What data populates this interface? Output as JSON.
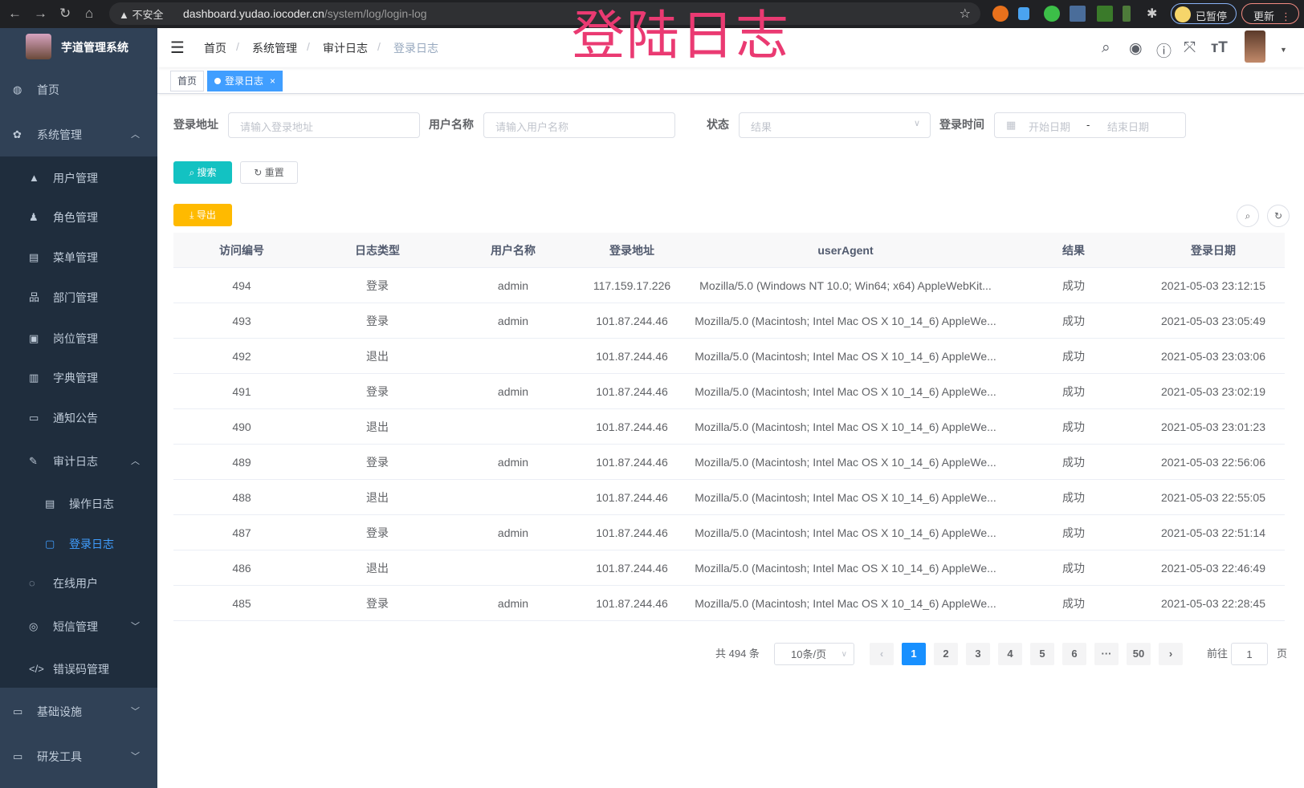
{
  "browser": {
    "security": "不安全",
    "url_host": "dashboard.yudao.iocoder.cn",
    "url_path": "/system/log/login-log",
    "paused": "已暂停",
    "update": "更新"
  },
  "app": {
    "title": "芋道管理系统"
  },
  "overlay_title": "登陆日志",
  "sidebar": {
    "items": [
      {
        "label": "首页",
        "icon": "dashboard-icon",
        "level": 0
      },
      {
        "label": "系统管理",
        "icon": "gear-icon",
        "level": 0,
        "expanded": true
      },
      {
        "label": "用户管理",
        "icon": "user-icon",
        "level": 1
      },
      {
        "label": "角色管理",
        "icon": "role-icon",
        "level": 1
      },
      {
        "label": "菜单管理",
        "icon": "menu-icon",
        "level": 1
      },
      {
        "label": "部门管理",
        "icon": "tree-icon",
        "level": 1
      },
      {
        "label": "岗位管理",
        "icon": "post-icon",
        "level": 1
      },
      {
        "label": "字典管理",
        "icon": "dict-icon",
        "level": 1
      },
      {
        "label": "通知公告",
        "icon": "message-icon",
        "level": 1
      },
      {
        "label": "审计日志",
        "icon": "edit-icon",
        "level": 1,
        "expanded": true
      },
      {
        "label": "操作日志",
        "icon": "form-icon",
        "level": 2
      },
      {
        "label": "登录日志",
        "icon": "logininfor-icon",
        "level": 2,
        "active": true
      },
      {
        "label": "在线用户",
        "icon": "online-icon",
        "level": 1
      },
      {
        "label": "短信管理",
        "icon": "shield-icon",
        "level": 1,
        "expanded": false
      },
      {
        "label": "错误码管理",
        "icon": "code-icon",
        "level": 1
      },
      {
        "label": "基础设施",
        "icon": "monitor-icon",
        "level": 0,
        "expanded": false
      },
      {
        "label": "研发工具",
        "icon": "tool-icon",
        "level": 0,
        "expanded": false
      }
    ]
  },
  "breadcrumb": [
    "首页",
    "系统管理",
    "审计日志",
    "登录日志"
  ],
  "tags": [
    {
      "label": "首页"
    },
    {
      "label": "登录日志",
      "active": true
    }
  ],
  "filters": {
    "address": {
      "label": "登录地址",
      "placeholder": "请输入登录地址"
    },
    "username": {
      "label": "用户名称",
      "placeholder": "请输入用户名称"
    },
    "status": {
      "label": "状态",
      "placeholder": "结果"
    },
    "time": {
      "label": "登录时间",
      "start": "开始日期",
      "sep": "-",
      "end": "结束日期"
    }
  },
  "buttons": {
    "search": "搜索",
    "reset": "重置",
    "export": "导出"
  },
  "table": {
    "columns": [
      "访问编号",
      "日志类型",
      "用户名称",
      "登录地址",
      "userAgent",
      "结果",
      "登录日期"
    ],
    "rows": [
      [
        "494",
        "登录",
        "admin",
        "117.159.17.226",
        "Mozilla/5.0 (Windows NT 10.0; Win64; x64) AppleWebKit...",
        "成功",
        "2021-05-03 23:12:15"
      ],
      [
        "493",
        "登录",
        "admin",
        "101.87.244.46",
        "Mozilla/5.0 (Macintosh; Intel Mac OS X 10_14_6) AppleWe...",
        "成功",
        "2021-05-03 23:05:49"
      ],
      [
        "492",
        "退出",
        "",
        "101.87.244.46",
        "Mozilla/5.0 (Macintosh; Intel Mac OS X 10_14_6) AppleWe...",
        "成功",
        "2021-05-03 23:03:06"
      ],
      [
        "491",
        "登录",
        "admin",
        "101.87.244.46",
        "Mozilla/5.0 (Macintosh; Intel Mac OS X 10_14_6) AppleWe...",
        "成功",
        "2021-05-03 23:02:19"
      ],
      [
        "490",
        "退出",
        "",
        "101.87.244.46",
        "Mozilla/5.0 (Macintosh; Intel Mac OS X 10_14_6) AppleWe...",
        "成功",
        "2021-05-03 23:01:23"
      ],
      [
        "489",
        "登录",
        "admin",
        "101.87.244.46",
        "Mozilla/5.0 (Macintosh; Intel Mac OS X 10_14_6) AppleWe...",
        "成功",
        "2021-05-03 22:56:06"
      ],
      [
        "488",
        "退出",
        "",
        "101.87.244.46",
        "Mozilla/5.0 (Macintosh; Intel Mac OS X 10_14_6) AppleWe...",
        "成功",
        "2021-05-03 22:55:05"
      ],
      [
        "487",
        "登录",
        "admin",
        "101.87.244.46",
        "Mozilla/5.0 (Macintosh; Intel Mac OS X 10_14_6) AppleWe...",
        "成功",
        "2021-05-03 22:51:14"
      ],
      [
        "486",
        "退出",
        "",
        "101.87.244.46",
        "Mozilla/5.0 (Macintosh; Intel Mac OS X 10_14_6) AppleWe...",
        "成功",
        "2021-05-03 22:46:49"
      ],
      [
        "485",
        "登录",
        "admin",
        "101.87.244.46",
        "Mozilla/5.0 (Macintosh; Intel Mac OS X 10_14_6) AppleWe...",
        "成功",
        "2021-05-03 22:28:45"
      ]
    ]
  },
  "pagination": {
    "total": "共 494 条",
    "page_size": "10条/页",
    "pages": [
      "1",
      "2",
      "3",
      "4",
      "5",
      "6",
      "···",
      "50"
    ],
    "current": "1",
    "goto_label": "前往",
    "goto_value": "1",
    "goto_suffix": "页"
  },
  "colors": {
    "sidebar": "#304156",
    "submenu": "#1f2d3d",
    "primary": "#1890ff",
    "search": "#13c2c2",
    "export": "#ffba00",
    "overlay": "#ea3a72"
  }
}
